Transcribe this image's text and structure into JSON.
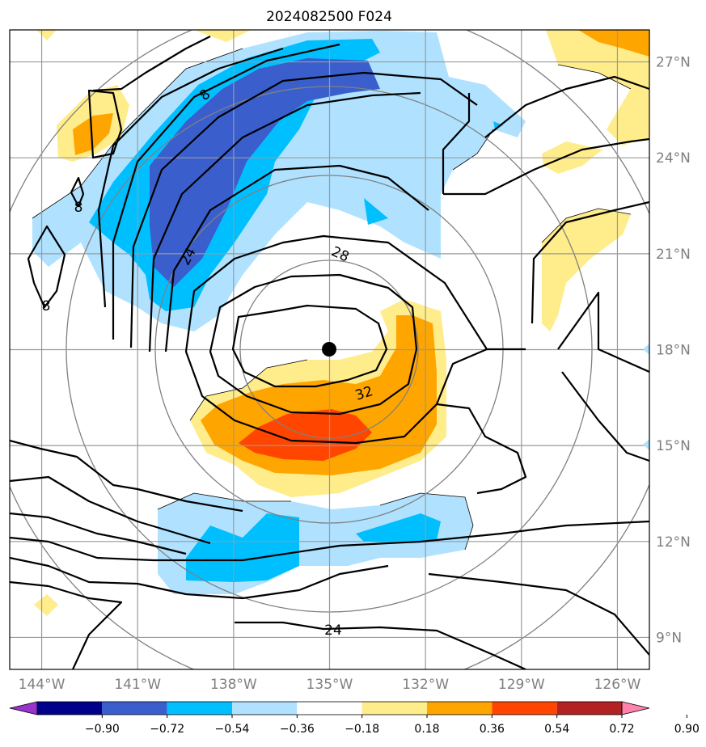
{
  "chart_data": {
    "type": "heatmap",
    "title": "2024082500 F024",
    "x_ticks": [
      "144°W",
      "141°W",
      "138°W",
      "135°W",
      "132°W",
      "129°W",
      "126°W"
    ],
    "x_tick_values": [
      -144,
      -141,
      -138,
      -135,
      -132,
      -129,
      -126
    ],
    "y_ticks": [
      "27°N",
      "24°N",
      "21°N",
      "18°N",
      "15°N",
      "12°N",
      "9°N"
    ],
    "y_tick_values": [
      27,
      24,
      21,
      18,
      15,
      12,
      9
    ],
    "xlim": [
      -145,
      -125
    ],
    "ylim": [
      8,
      28
    ],
    "grid": true,
    "colorbar": {
      "ticks": [
        "−0.90",
        "−0.72",
        "−0.54",
        "−0.36",
        "−0.18",
        "0.18",
        "0.36",
        "0.54",
        "0.72",
        "0.90"
      ],
      "levels": [
        -0.9,
        -0.72,
        -0.54,
        -0.36,
        -0.18,
        0.18,
        0.36,
        0.54,
        0.72,
        0.9
      ],
      "colors": [
        "#9a32cd",
        "#00008b",
        "#3a5fcd",
        "#00bfff",
        "#b0e2ff",
        "#ffffff",
        "#ffec8b",
        "#ffa500",
        "#ff4500",
        "#b22222",
        "#ff82ab"
      ]
    },
    "contour_labels": [
      "8",
      "8",
      "8",
      "24",
      "28",
      "32",
      "24"
    ],
    "center_marker": {
      "lon": -135,
      "lat": 18
    },
    "range_ring_color": "#808080",
    "contour_color": "#000000"
  }
}
